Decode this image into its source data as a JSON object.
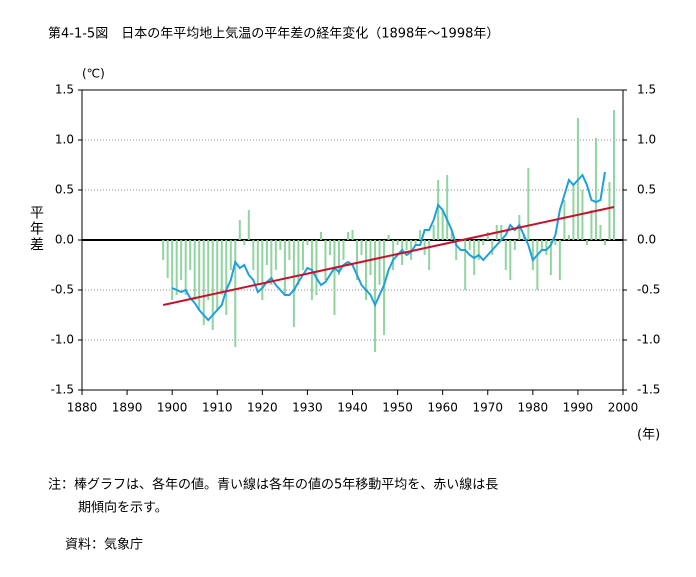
{
  "chart_data": {
    "type": "bar",
    "title": "第4-1-5図　日本の年平均地上気温の平年差の経年変化（1898年～1998年）",
    "unit_label": "(℃)",
    "ylabel": "平年差",
    "xlabel": "(年)",
    "note": [
      "注：棒グラフは、各年の値。青い線は各年の値の5年移動平均を、赤い線は長",
      "期傾向を示す。"
    ],
    "source": "資料：気象庁",
    "xlim": [
      1880,
      2000
    ],
    "xticks": [
      1880,
      1890,
      1900,
      1910,
      1920,
      1930,
      1940,
      1950,
      1960,
      1970,
      1980,
      1990,
      2000
    ],
    "ylim": [
      -1.5,
      1.5
    ],
    "yticks": [
      1.5,
      {
        "value": 1.0,
        "label": "1.0"
      },
      0.5,
      {
        "value": 0.0,
        "label": "0.0"
      },
      -0.5,
      {
        "value": -1.0,
        "label": "-1.0"
      },
      -1.5
    ],
    "grid": true,
    "x": [
      1898,
      1899,
      1900,
      1901,
      1902,
      1903,
      1904,
      1905,
      1906,
      1907,
      1908,
      1909,
      1910,
      1911,
      1912,
      1913,
      1914,
      1915,
      1916,
      1917,
      1918,
      1919,
      1920,
      1921,
      1922,
      1923,
      1924,
      1925,
      1926,
      1927,
      1928,
      1929,
      1930,
      1931,
      1932,
      1933,
      1934,
      1935,
      1936,
      1937,
      1938,
      1939,
      1940,
      1941,
      1942,
      1943,
      1944,
      1945,
      1946,
      1947,
      1948,
      1949,
      1950,
      1951,
      1952,
      1953,
      1954,
      1955,
      1956,
      1957,
      1958,
      1959,
      1960,
      1961,
      1962,
      1963,
      1964,
      1965,
      1966,
      1967,
      1968,
      1969,
      1970,
      1971,
      1972,
      1973,
      1974,
      1975,
      1976,
      1977,
      1978,
      1979,
      1980,
      1981,
      1982,
      1983,
      1984,
      1985,
      1986,
      1987,
      1988,
      1989,
      1990,
      1991,
      1992,
      1993,
      1994,
      1995,
      1996,
      1997,
      1998
    ],
    "series": [
      {
        "type": "bar",
        "color": "#90d4a0",
        "values": [
          -0.2,
          -0.38,
          -0.6,
          -0.55,
          -0.4,
          -0.55,
          -0.3,
          -0.6,
          -0.7,
          -0.85,
          -0.6,
          -0.9,
          -0.7,
          -0.55,
          -0.75,
          -0.3,
          -1.07,
          0.2,
          -0.05,
          0.3,
          -0.3,
          -0.45,
          -0.6,
          -0.25,
          -0.45,
          -0.3,
          -0.1,
          -0.55,
          -0.2,
          -0.87,
          -0.45,
          -0.3,
          -0.05,
          -0.6,
          -0.55,
          0.08,
          -0.4,
          -0.15,
          -0.75,
          -0.35,
          -0.2,
          0.08,
          0.1,
          -0.4,
          -0.15,
          -0.6,
          -0.35,
          -1.12,
          -0.45,
          -0.95,
          0.05,
          -0.3,
          -0.05,
          -0.25,
          -0.1,
          -0.2,
          -0.05,
          0.1,
          -0.15,
          -0.3,
          0.15,
          0.6,
          0.3,
          0.65,
          0.1,
          -0.2,
          0.0,
          -0.5,
          -0.1,
          -0.35,
          -0.2,
          -0.05,
          0.08,
          -0.15,
          0.15,
          0.15,
          -0.3,
          -0.4,
          -0.1,
          0.25,
          0.05,
          0.72,
          -0.3,
          -0.5,
          -0.1,
          -0.15,
          -0.35,
          -0.05,
          -0.4,
          0.4,
          0.05,
          0.55,
          1.22,
          0.5,
          -0.05,
          0.3,
          1.02,
          0.15,
          -0.05,
          0.58,
          1.3
        ]
      },
      {
        "type": "line",
        "color": "#1ea0dc",
        "values": [
          null,
          null,
          -0.48,
          -0.5,
          -0.52,
          -0.5,
          -0.58,
          -0.63,
          -0.7,
          -0.75,
          -0.8,
          -0.75,
          -0.7,
          -0.65,
          -0.5,
          -0.4,
          -0.22,
          -0.28,
          -0.25,
          -0.35,
          -0.4,
          -0.52,
          -0.48,
          -0.42,
          -0.38,
          -0.45,
          -0.5,
          -0.55,
          -0.55,
          -0.5,
          -0.42,
          -0.35,
          -0.28,
          -0.3,
          -0.38,
          -0.45,
          -0.42,
          -0.35,
          -0.28,
          -0.32,
          -0.25,
          -0.22,
          -0.25,
          -0.35,
          -0.45,
          -0.5,
          -0.55,
          -0.65,
          -0.55,
          -0.45,
          -0.3,
          -0.2,
          -0.15,
          -0.1,
          -0.15,
          -0.12,
          -0.05,
          -0.05,
          0.1,
          0.1,
          0.2,
          0.35,
          0.3,
          0.2,
          0.1,
          -0.05,
          -0.1,
          -0.1,
          -0.15,
          -0.18,
          -0.15,
          -0.2,
          -0.15,
          -0.1,
          -0.05,
          0.0,
          0.05,
          0.15,
          0.1,
          0.15,
          0.05,
          -0.05,
          -0.2,
          -0.15,
          -0.1,
          -0.1,
          -0.05,
          0.05,
          0.3,
          0.45,
          0.6,
          0.55,
          0.6,
          0.65,
          0.55,
          0.4,
          0.38,
          0.4,
          0.68,
          null,
          null
        ]
      }
    ],
    "trend": {
      "color": "#c8102e",
      "x": [
        1898,
        1998
      ],
      "values": [
        -0.65,
        0.33
      ]
    }
  }
}
